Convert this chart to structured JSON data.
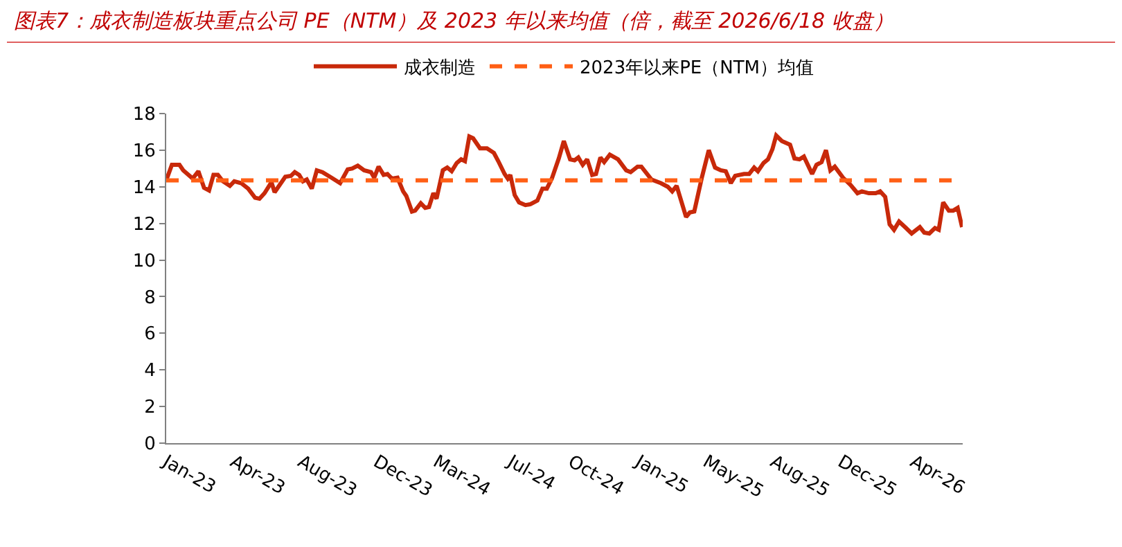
{
  "chart_data": {
    "type": "line",
    "title": "图表7：成衣制造板块重点公司 PE（NTM）及 2023 年以来均值（倍，截至 2026/6/18 收盘）",
    "xlim": [
      "2023-01-01",
      "2026-06-18"
    ],
    "xticks": [
      {
        "value": "2023-01-01",
        "label": "Jan-23"
      },
      {
        "value": "2023-04-18",
        "label": "Apr-23"
      },
      {
        "value": "2023-08-03",
        "label": "Aug-23"
      },
      {
        "value": "2023-12-01",
        "label": "Dec-23"
      },
      {
        "value": "2024-03-05",
        "label": "Mar-24"
      },
      {
        "value": "2024-07-01",
        "label": "Jul-24"
      },
      {
        "value": "2024-10-05",
        "label": "Oct-24"
      },
      {
        "value": "2025-01-20",
        "label": "Jan-25"
      },
      {
        "value": "2025-05-07",
        "label": "May-25"
      },
      {
        "value": "2025-08-22",
        "label": "Aug-25"
      },
      {
        "value": "2025-12-07",
        "label": "Dec-25"
      },
      {
        "value": "2026-04-01",
        "label": "Apr-26"
      }
    ],
    "ylim": [
      0,
      18
    ],
    "yticks": [
      0,
      2,
      4,
      6,
      8,
      10,
      12,
      14,
      16,
      18
    ],
    "grid": false,
    "legend": "top",
    "marker": "none",
    "series": [
      {
        "name": "成衣制造",
        "color": "#c8290a",
        "line_style": "solid",
        "x": [
          "2023-01-01",
          "2023-01-10",
          "2023-01-22",
          "2023-01-28",
          "2023-02-12",
          "2023-02-21",
          "2023-03-02",
          "2023-03-10",
          "2023-03-17",
          "2023-03-24",
          "2023-04-01",
          "2023-04-12",
          "2023-04-19",
          "2023-04-30",
          "2023-05-11",
          "2023-05-22",
          "2023-05-29",
          "2023-06-06",
          "2023-06-17",
          "2023-06-22",
          "2023-07-02",
          "2023-07-09",
          "2023-07-18",
          "2023-07-24",
          "2023-07-31",
          "2023-08-06",
          "2023-08-12",
          "2023-08-20",
          "2023-08-28",
          "2023-09-06",
          "2023-09-20",
          "2023-10-04",
          "2023-10-16",
          "2023-10-23",
          "2023-11-01",
          "2023-11-11",
          "2023-11-22",
          "2023-11-27",
          "2023-12-04",
          "2023-12-12",
          "2023-12-18",
          "2023-12-25",
          "2024-01-03",
          "2024-01-12",
          "2024-01-17",
          "2024-01-26",
          "2024-01-31",
          "2024-02-09",
          "2024-02-16",
          "2024-02-22",
          "2024-02-29",
          "2024-03-05",
          "2024-03-15",
          "2024-03-22",
          "2024-03-29",
          "2024-04-06",
          "2024-04-13",
          "2024-04-19",
          "2024-04-26",
          "2024-05-02",
          "2024-05-13",
          "2024-05-24",
          "2024-06-04",
          "2024-06-11",
          "2024-06-21",
          "2024-06-26",
          "2024-06-30",
          "2024-07-07",
          "2024-07-14",
          "2024-07-24",
          "2024-08-01",
          "2024-08-12",
          "2024-08-20",
          "2024-08-27",
          "2024-09-04",
          "2024-09-15",
          "2024-09-23",
          "2024-10-03",
          "2024-10-10",
          "2024-10-16",
          "2024-10-23",
          "2024-10-30",
          "2024-11-07",
          "2024-11-13",
          "2024-11-20",
          "2024-11-26",
          "2024-12-05",
          "2024-12-18",
          "2024-12-31",
          "2025-01-07",
          "2025-01-18",
          "2025-01-24",
          "2025-02-09",
          "2025-02-24",
          "2025-03-07",
          "2025-03-14",
          "2025-03-21",
          "2025-04-05",
          "2025-04-11",
          "2025-04-18",
          "2025-04-30",
          "2025-05-11",
          "2025-05-21",
          "2025-05-30",
          "2025-06-07",
          "2025-06-15",
          "2025-06-22",
          "2025-07-06",
          "2025-07-14",
          "2025-07-22",
          "2025-07-28",
          "2025-08-06",
          "2025-08-13",
          "2025-08-20",
          "2025-08-26",
          "2025-09-04",
          "2025-09-17",
          "2025-09-24",
          "2025-10-02",
          "2025-10-09",
          "2025-10-22",
          "2025-10-29",
          "2025-11-06",
          "2025-11-13",
          "2025-11-20",
          "2025-11-27",
          "2025-12-10",
          "2025-12-22",
          "2026-01-02",
          "2026-01-09",
          "2026-01-20",
          "2026-01-31",
          "2026-02-07",
          "2026-02-15",
          "2026-02-22",
          "2026-03-01",
          "2026-03-09",
          "2026-03-20",
          "2026-03-29",
          "2026-04-11",
          "2026-04-18",
          "2026-04-26",
          "2026-05-05",
          "2026-05-11",
          "2026-05-18",
          "2026-05-27",
          "2026-06-03",
          "2026-06-10",
          "2026-06-17"
        ],
        "values": [
          14.35,
          15.2,
          15.2,
          14.9,
          14.45,
          14.85,
          13.95,
          13.8,
          14.65,
          14.65,
          14.3,
          14.05,
          14.3,
          14.2,
          13.9,
          13.4,
          13.35,
          13.65,
          14.25,
          13.7,
          14.2,
          14.55,
          14.6,
          14.8,
          14.65,
          14.3,
          14.4,
          13.9,
          14.9,
          14.8,
          14.5,
          14.2,
          14.95,
          15.0,
          15.15,
          14.9,
          14.8,
          14.5,
          15.1,
          14.65,
          14.7,
          14.45,
          14.5,
          13.75,
          13.5,
          12.65,
          12.7,
          13.1,
          12.85,
          12.9,
          13.65,
          13.35,
          14.9,
          15.05,
          14.85,
          15.3,
          15.5,
          15.4,
          16.75,
          16.65,
          16.1,
          16.1,
          15.85,
          15.4,
          14.7,
          14.45,
          14.65,
          13.55,
          13.15,
          13.0,
          13.05,
          13.25,
          13.9,
          13.9,
          14.45,
          15.55,
          16.5,
          15.5,
          15.45,
          15.6,
          15.2,
          15.5,
          14.65,
          14.7,
          15.6,
          15.35,
          15.75,
          15.5,
          14.9,
          14.8,
          15.1,
          15.1,
          14.4,
          14.2,
          14.0,
          13.75,
          14.05,
          12.35,
          12.6,
          12.65,
          14.5,
          16.0,
          15.05,
          14.9,
          14.85,
          14.2,
          14.6,
          14.7,
          14.7,
          15.05,
          14.85,
          15.3,
          15.5,
          16.05,
          16.8,
          16.5,
          16.3,
          15.55,
          15.5,
          15.65,
          14.7,
          15.2,
          15.35,
          16.0,
          14.9,
          15.1,
          14.5,
          14.1,
          13.65,
          13.75,
          13.65,
          13.65,
          13.75,
          13.45,
          11.95,
          11.65,
          12.1,
          11.75,
          11.45,
          11.8,
          11.5,
          11.45,
          11.75,
          11.65,
          13.15,
          12.7,
          12.7,
          12.85,
          11.8
        ]
      },
      {
        "name": "2023年以来PE（NTM）均值",
        "color": "#ff5f15",
        "line_style": "dashed",
        "x": [
          "2023-01-01",
          "2026-06-17"
        ],
        "values": [
          14.35,
          14.35
        ]
      }
    ]
  }
}
